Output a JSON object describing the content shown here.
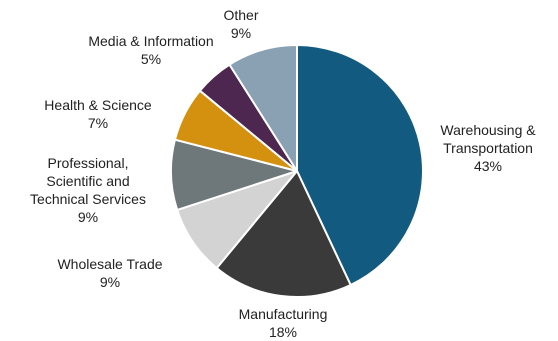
{
  "chart_data": {
    "type": "pie",
    "start_angle_deg": 0,
    "direction": "clockwise",
    "slices": [
      {
        "label_lines": [
          "Warehousing &",
          "Transportation"
        ],
        "pct_label": "43%",
        "value": 43,
        "color": "#135a80"
      },
      {
        "label_lines": [
          "Manufacturing"
        ],
        "pct_label": "18%",
        "value": 18,
        "color": "#3a3a3a"
      },
      {
        "label_lines": [
          "Wholesale Trade"
        ],
        "pct_label": "9%",
        "value": 9,
        "color": "#d3d3d3"
      },
      {
        "label_lines": [
          "Professional,",
          "Scientific and",
          "Technical Services"
        ],
        "pct_label": "9%",
        "value": 9,
        "color": "#6e777a"
      },
      {
        "label_lines": [
          "Health & Science"
        ],
        "pct_label": "7%",
        "value": 7,
        "color": "#d4900f"
      },
      {
        "label_lines": [
          "Media & Information"
        ],
        "pct_label": "5%",
        "value": 5,
        "color": "#4e2750"
      },
      {
        "label_lines": [
          "Other"
        ],
        "pct_label": "9%",
        "value": 9,
        "color": "#8aa1b4"
      }
    ]
  }
}
